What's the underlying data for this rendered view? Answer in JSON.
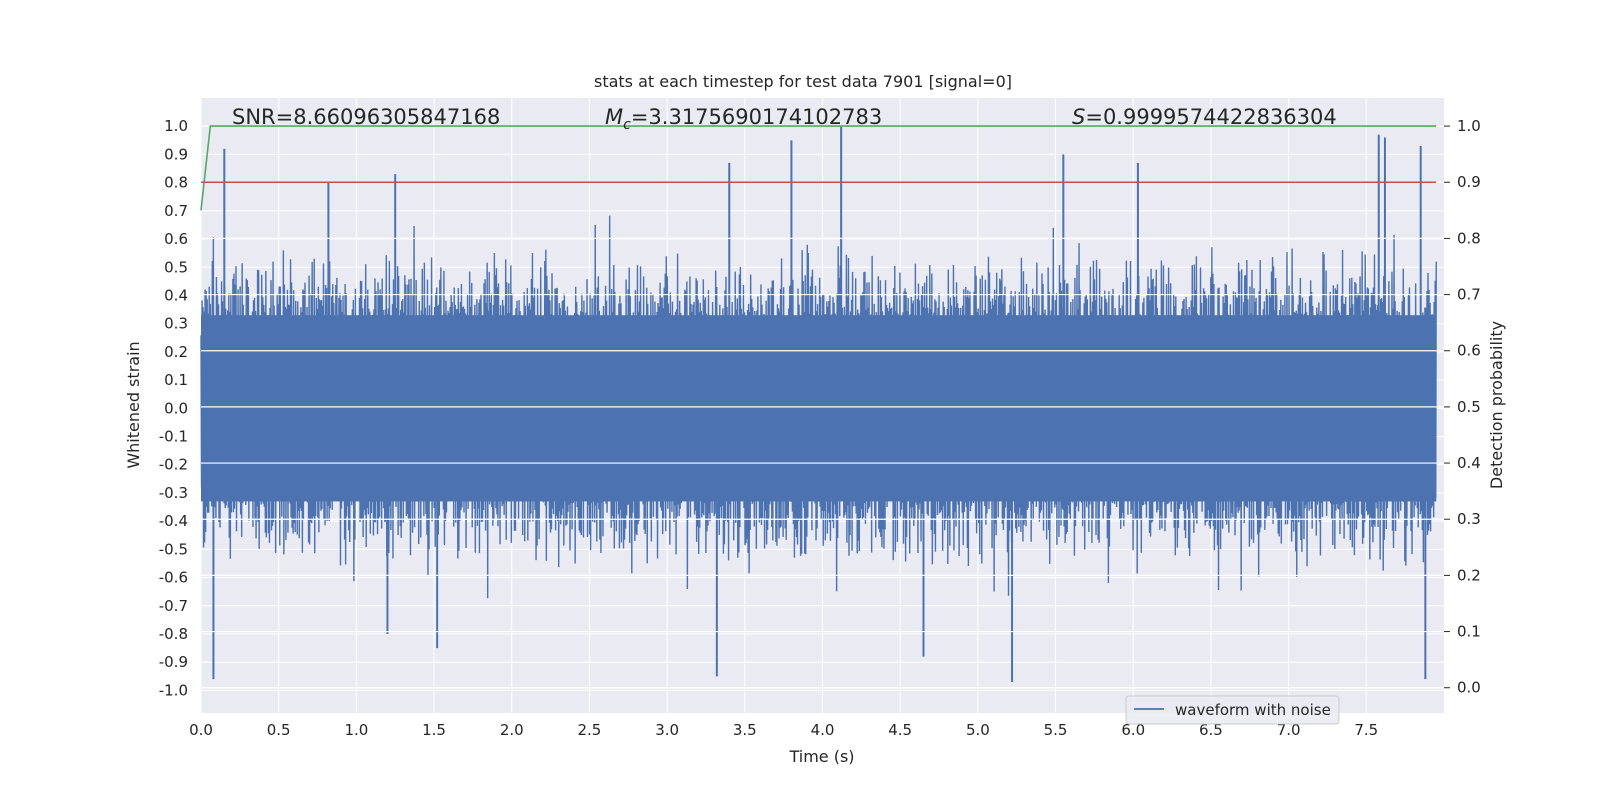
{
  "chart_data": {
    "type": "line",
    "title": "stats at each timestep for test data 7901 [signal=0]",
    "xlabel": "Time (s)",
    "ylabel": "Whitened strain",
    "y2label": "Detection probability",
    "xlim": [
      0.0,
      8.0
    ],
    "ylim": [
      -1.08,
      1.1
    ],
    "y2lim": [
      -0.045,
      1.05
    ],
    "xticks": [
      "0.0",
      "0.5",
      "1.0",
      "1.5",
      "2.0",
      "2.5",
      "3.0",
      "3.5",
      "4.0",
      "4.5",
      "5.0",
      "5.5",
      "6.0",
      "6.5",
      "7.0",
      "7.5"
    ],
    "yticks": [
      "-1.0",
      "-0.9",
      "-0.8",
      "-0.7",
      "-0.6",
      "-0.5",
      "-0.4",
      "-0.3",
      "-0.2",
      "-0.1",
      "0.0",
      "0.1",
      "0.2",
      "0.3",
      "0.4",
      "0.5",
      "0.6",
      "0.7",
      "0.8",
      "0.9",
      "1.0"
    ],
    "y2ticks": [
      "0.0",
      "0.1",
      "0.2",
      "0.3",
      "0.4",
      "0.5",
      "0.6",
      "0.7",
      "0.8",
      "0.9",
      "1.0"
    ],
    "annotations": {
      "snr_label": "SNR=8.66096305847168",
      "mc_prefix": "M",
      "mc_sub": "c",
      "mc_value": "=3.3175690174102783",
      "s_prefix": "S",
      "s_value": "=0.9999574422836304"
    },
    "legend": {
      "label": "waveform with noise",
      "location": "lower-right"
    },
    "colors": {
      "waveform": "#4c72b0",
      "probability": "#55a868",
      "threshold": "#c44e52",
      "background": "#eaeaf2",
      "grid": "#ffffff"
    },
    "series": [
      {
        "name": "waveform with noise",
        "axis": "left",
        "description": "dense whitened noise, 8 s sampled; envelope roughly ±0.6 with spikes",
        "spikes": [
          {
            "x": 0.15,
            "y": 0.92
          },
          {
            "x": 0.08,
            "y": -0.96
          },
          {
            "x": 1.25,
            "y": 0.83
          },
          {
            "x": 0.82,
            "y": 0.8
          },
          {
            "x": 1.52,
            "y": -0.85
          },
          {
            "x": 3.32,
            "y": -0.95
          },
          {
            "x": 3.4,
            "y": 0.87
          },
          {
            "x": 3.8,
            "y": 0.95
          },
          {
            "x": 4.12,
            "y": 1.0
          },
          {
            "x": 5.22,
            "y": -0.97
          },
          {
            "x": 5.55,
            "y": 0.9
          },
          {
            "x": 6.03,
            "y": 0.87
          },
          {
            "x": 7.58,
            "y": 0.97
          },
          {
            "x": 7.62,
            "y": 0.96
          },
          {
            "x": 7.85,
            "y": 0.93
          },
          {
            "x": 7.88,
            "y": -0.96
          },
          {
            "x": 4.65,
            "y": -0.88
          },
          {
            "x": 1.2,
            "y": -0.8
          }
        ]
      },
      {
        "name": "detection probability",
        "axis": "right",
        "x": [
          0.0,
          0.06,
          7.95
        ],
        "y": [
          0.85,
          1.0,
          1.0
        ]
      },
      {
        "name": "threshold",
        "axis": "right",
        "x": [
          0.0,
          7.95
        ],
        "y": [
          0.9,
          0.9
        ]
      }
    ]
  }
}
